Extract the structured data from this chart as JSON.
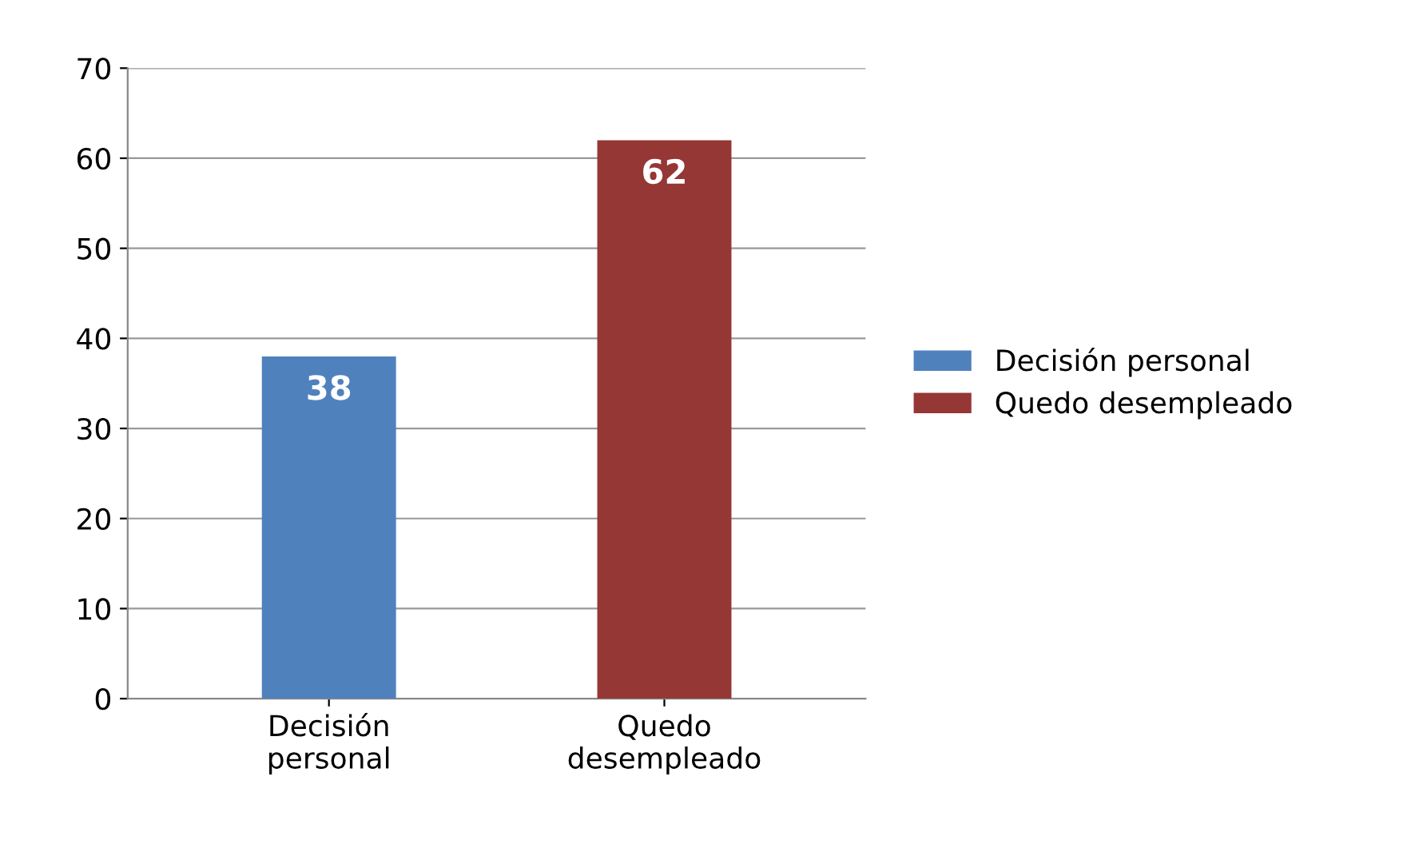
{
  "chart_data": {
    "type": "bar",
    "categories": [
      "Decisión personal",
      "Quedo desempleado"
    ],
    "series": [
      {
        "name": "Decisión personal",
        "color": "#4f81bd",
        "values": [
          38,
          null
        ]
      },
      {
        "name": "Quedo desempleado",
        "color": "#953735",
        "values": [
          null,
          62
        ]
      }
    ],
    "ylim": [
      0,
      70
    ],
    "yticks": [
      0,
      10,
      20,
      30,
      40,
      50,
      60,
      70
    ],
    "grid": "y",
    "legend": "right",
    "data_labels": true
  }
}
